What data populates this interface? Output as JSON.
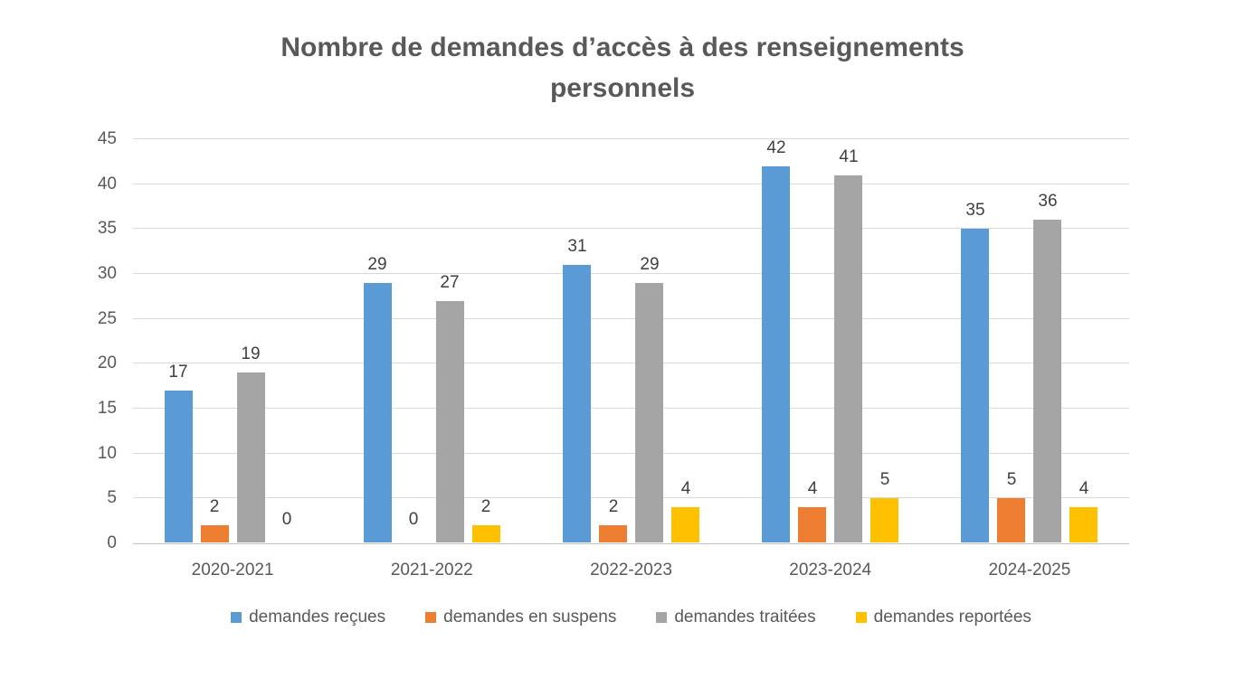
{
  "chart_data": {
    "type": "bar",
    "title": "Nombre de demandes d’accès à des renseignements personnels",
    "categories": [
      "2020-2021",
      "2021-2022",
      "2022-2023",
      "2023-2024",
      "2024-2025"
    ],
    "series": [
      {
        "name": "demandes reçues",
        "color": "#5B9BD5",
        "values": [
          17,
          29,
          31,
          42,
          35
        ]
      },
      {
        "name": "demandes en suspens",
        "color": "#ED7D31",
        "values": [
          2,
          0,
          2,
          4,
          5
        ]
      },
      {
        "name": "demandes traitées",
        "color": "#A5A5A5",
        "values": [
          19,
          27,
          29,
          41,
          36
        ]
      },
      {
        "name": "demandes reportées",
        "color": "#FFC000",
        "values": [
          0,
          2,
          4,
          5,
          4
        ]
      }
    ],
    "ylim": [
      0,
      45
    ],
    "ytick_step": 5,
    "yticks": [
      0,
      5,
      10,
      15,
      20,
      25,
      30,
      35,
      40,
      45
    ],
    "grid": true,
    "data_labels": true,
    "legend_position": "bottom",
    "text_color": "#595959",
    "data_label_color": "#3f3f3f",
    "gridline_color": "#D9D9D9",
    "background_color": "#FFFFFF"
  }
}
